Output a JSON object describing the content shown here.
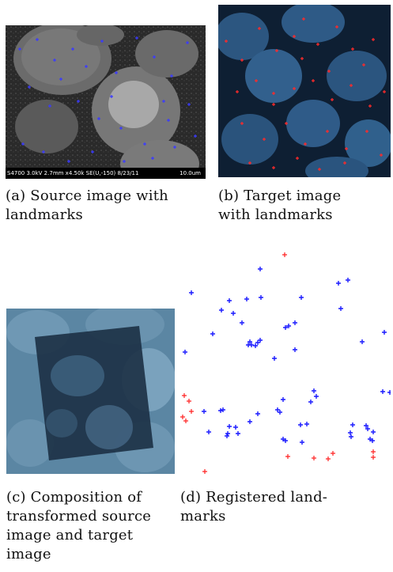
{
  "figure": {
    "panels": [
      {
        "id": "a",
        "caption": "(a) Source image with landmarks",
        "caption_parts": [
          "(a) Source image with",
          "landmarks"
        ],
        "sem_info": "S4700 3.0kV 2.7mm x4.50k SE(U,-150) 8/23/11",
        "scale_text": "10.0um",
        "landmark_color": "#3a3aff"
      },
      {
        "id": "b",
        "caption": "(b) Target image with landmarks",
        "caption_parts": [
          "(b)   Target   image",
          "with landmarks"
        ],
        "landmark_color": "#ff2a2a"
      },
      {
        "id": "c",
        "caption": "(c) Composition of transformed source image and target image",
        "caption_parts": [
          "(c) Composition of",
          "transformed source",
          "image and target",
          "image"
        ]
      },
      {
        "id": "d",
        "caption": "(d) Registered landmarks",
        "caption_parts": [
          "(d)   Registered   land-",
          "marks"
        ],
        "source_color": "#1a1aff",
        "target_color": "#ff2020"
      }
    ]
  }
}
